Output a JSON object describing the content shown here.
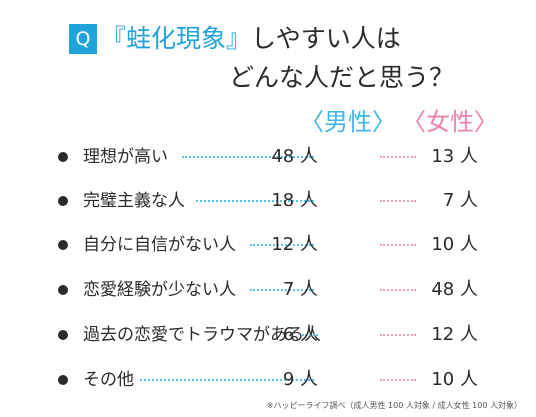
{
  "title": {
    "q_badge": "Q",
    "accent": "『蛙化現象』",
    "line1_rest": "しやすい人は",
    "line2": "どんな人だと思う？"
  },
  "headers": {
    "male": "〈男性〉",
    "female": "〈女性〉"
  },
  "rows": [
    {
      "label": "理想が高い",
      "male": "48 人",
      "female": "13 人"
    },
    {
      "label": "完璧主義な人",
      "male": "18 人",
      "female": "7 人"
    },
    {
      "label": "自分に自信がない人",
      "male": "12 人",
      "female": "10 人"
    },
    {
      "label": "恋愛経験が少ない人",
      "male": "7 人",
      "female": "48 人"
    },
    {
      "label": "過去の恋愛でトラウマがある人",
      "male": "6 人",
      "female": "12 人"
    },
    {
      "label": "その他",
      "male": "9 人",
      "female": "10 人"
    }
  ],
  "footnote": "※ハッピーライフ調べ（成人男性 100 人対象 / 成人女性 100 人対象）",
  "colors": {
    "accent_blue": "#23a3dc",
    "male_blue": "#40b8e4",
    "female_pink": "#ec82ad"
  }
}
